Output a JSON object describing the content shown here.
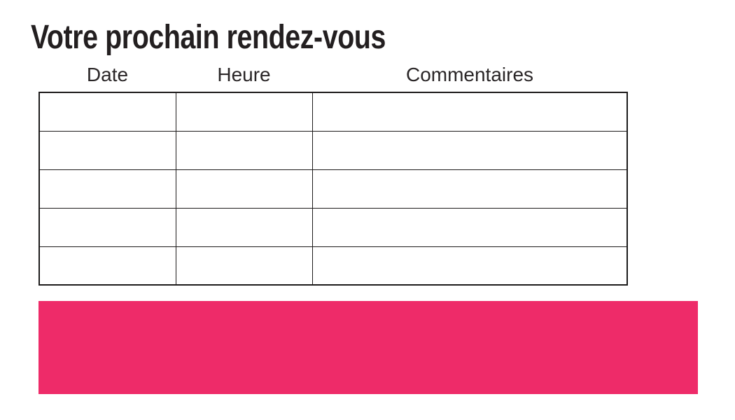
{
  "page": {
    "title": "Votre prochain rendez-vous",
    "background_color": "#ffffff"
  },
  "table": {
    "headers": [
      "Date",
      "Heure",
      "Commentaires"
    ],
    "rows": [
      [
        "",
        "",
        ""
      ],
      [
        "",
        "",
        ""
      ],
      [
        "",
        "",
        ""
      ],
      [
        "",
        "",
        ""
      ],
      [
        "",
        "",
        ""
      ]
    ],
    "border_color": "#1d1b1b"
  },
  "banner": {
    "background_color": "#ee2b69"
  },
  "colors": {
    "title_text": "#231f20",
    "header_text": "#2a2627",
    "accent_pink": "#ee2b69"
  }
}
